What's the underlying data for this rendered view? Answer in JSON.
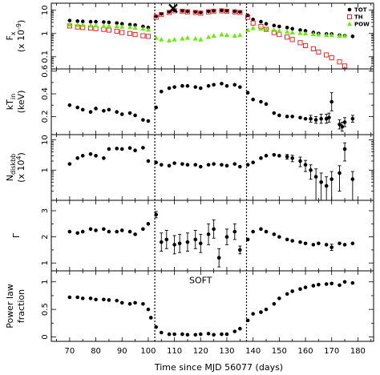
{
  "chart_data": {
    "type": "scatter",
    "title": "",
    "xlabel": "Time since MJD 56077 (days)",
    "xlim": [
      63,
      186
    ],
    "xticks": [
      "70",
      "80",
      "90",
      "100",
      "110",
      "120",
      "130",
      "140",
      "150",
      "160",
      "170",
      "180"
    ],
    "vlines": [
      102.5,
      137.5
    ],
    "colors": {
      "TOT": "#000000",
      "TH": "#ee1111",
      "POW": "#66ee00"
    },
    "panels": [
      {
        "id": "fx",
        "ylabel_line1": "F",
        "ylabel_sub": "x",
        "ylabel_line2": "(x 10",
        "ylabel_sup": "-9",
        "ylabel_close": ")",
        "log": true,
        "ylim": [
          0.03,
          20
        ],
        "ytick_labels": [
          {
            "v": 10,
            "text": "10"
          },
          {
            "v": 1,
            "text": "1"
          },
          {
            "v": 0.1,
            "text": "0.1"
          }
        ],
        "legend": [
          {
            "key": "TOT",
            "label": "TOT",
            "marker": "dot"
          },
          {
            "key": "TH",
            "label": "TH",
            "marker": "square"
          },
          {
            "key": "POW",
            "label": "POW",
            "marker": "triangle"
          }
        ],
        "marker_x": {
          "x": 109.5,
          "y": 12
        },
        "series": [
          {
            "name": "TOT",
            "marker": "dot",
            "x": [
              70,
              73,
              75,
              78,
              80,
              83,
              85,
              88,
              90,
              93,
              95,
              98,
              100,
              103,
              105,
              108,
              110,
              113,
              115,
              118,
              120,
              123,
              125,
              128,
              130,
              133,
              135,
              138,
              140,
              143,
              145,
              148,
              150,
              153,
              155,
              158,
              160,
              163,
              165,
              168,
              170,
              173,
              175,
              178
            ],
            "y": [
              3.6,
              3.4,
              3.3,
              3.2,
              3.2,
              3.1,
              3,
              2.8,
              2.6,
              2.4,
              2.3,
              2,
              1.8,
              5.5,
              7,
              8.5,
              10,
              9.5,
              9,
              8.5,
              8,
              9,
              9.5,
              9.8,
              9.5,
              9,
              8.5,
              6,
              4,
              3.2,
              2.6,
              2.2,
              2,
              1.8,
              1.6,
              1.4,
              1.3,
              1.1,
              1,
              0.95,
              0.95,
              0.85,
              0.8,
              0.75
            ]
          },
          {
            "name": "TH",
            "marker": "square",
            "x": [
              70,
              73,
              75,
              78,
              80,
              83,
              85,
              88,
              90,
              93,
              95,
              98,
              100,
              103,
              105,
              108,
              110,
              113,
              115,
              118,
              120,
              123,
              125,
              128,
              130,
              133,
              135,
              138,
              140,
              143,
              145,
              148,
              150,
              153,
              155,
              158,
              160,
              163,
              165,
              168,
              170,
              173,
              175
            ],
            "y": [
              2.1,
              1.9,
              1.8,
              1.7,
              1.6,
              1.5,
              1.4,
              1.25,
              1.1,
              1,
              0.9,
              0.8,
              0.75,
              5,
              6.5,
              8,
              9.5,
              9,
              8.5,
              8,
              7.5,
              8.5,
              9,
              9.4,
              9,
              8.5,
              8,
              5,
              2.8,
              2,
              1.5,
              1.1,
              0.9,
              0.7,
              0.55,
              0.4,
              0.3,
              0.22,
              0.16,
              0.12,
              0.09,
              0.06,
              0.04
            ]
          },
          {
            "name": "POW",
            "marker": "triangle",
            "x": [
              70,
              73,
              75,
              78,
              80,
              83,
              85,
              88,
              90,
              93,
              95,
              98,
              100,
              103,
              105,
              108,
              110,
              113,
              115,
              118,
              120,
              123,
              125,
              128,
              130,
              133,
              135,
              138,
              140,
              143,
              145,
              148,
              150,
              153,
              155,
              158,
              160,
              163,
              165,
              168,
              170,
              173,
              175
            ],
            "y": [
              2.4,
              2.3,
              2.3,
              2.2,
              2.2,
              2.1,
              2.1,
              2.05,
              1.95,
              1.85,
              1.75,
              1.6,
              1.45,
              0.65,
              0.55,
              0.5,
              0.55,
              0.6,
              0.65,
              0.6,
              0.55,
              0.7,
              0.8,
              0.9,
              0.85,
              0.8,
              0.85,
              1.4,
              1.7,
              1.6,
              1.5,
              1.4,
              1.3,
              1.2,
              1.1,
              1.05,
              1,
              0.95,
              0.9,
              0.85,
              0.85,
              0.8,
              0.78
            ]
          }
        ]
      },
      {
        "id": "kt",
        "ylabel_line1": "kT",
        "ylabel_sub": "in",
        "ylabel_line2": "(keV)",
        "log": false,
        "ylim": [
          0.04,
          0.62
        ],
        "ytick_labels": [
          {
            "v": 0.2,
            "text": "0.2"
          },
          {
            "v": 0.4,
            "text": "0.4"
          },
          {
            "v": 0.6,
            "text": "0.6"
          }
        ],
        "series": [
          {
            "name": "kTin",
            "marker": "dot",
            "x": [
              70,
              73,
              75,
              78,
              80,
              83,
              85,
              88,
              90,
              93,
              95,
              98,
              100,
              103,
              105,
              108,
              110,
              113,
              115,
              118,
              120,
              123,
              125,
              128,
              130,
              133,
              135,
              138,
              140,
              143,
              145,
              148,
              150,
              153,
              155,
              158,
              160,
              162,
              164,
              166,
              168,
              169,
              170,
              173,
              174,
              175,
              178
            ],
            "y": [
              0.3,
              0.28,
              0.26,
              0.24,
              0.27,
              0.25,
              0.26,
              0.24,
              0.22,
              0.23,
              0.21,
              0.17,
              0.16,
              0.28,
              0.42,
              0.45,
              0.46,
              0.47,
              0.47,
              0.46,
              0.45,
              0.47,
              0.48,
              0.49,
              0.47,
              0.48,
              0.46,
              0.41,
              0.35,
              0.33,
              0.31,
              0.23,
              0.21,
              0.2,
              0.2,
              0.19,
              0.18,
              0.18,
              0.17,
              0.18,
              0.18,
              0.19,
              0.33,
              0.13,
              0.11,
              0.15,
              0.18
            ],
            "err": [
              0,
              0,
              0,
              0,
              0,
              0,
              0,
              0,
              0,
              0,
              0,
              0,
              0,
              0,
              0,
              0,
              0,
              0,
              0,
              0,
              0,
              0,
              0,
              0,
              0,
              0,
              0,
              0,
              0,
              0,
              0,
              0,
              0,
              0,
              0,
              0,
              0,
              0.03,
              0.03,
              0.04,
              0.04,
              0.04,
              0.08,
              0.04,
              0.04,
              0.04,
              0.03
            ]
          }
        ]
      },
      {
        "id": "nd",
        "ylabel_line1": "N",
        "ylabel_sub": "diskbb",
        "ylabel_line2": "(x 10",
        "ylabel_sup": "4",
        "ylabel_close": ")",
        "log": true,
        "ylim": [
          0.1,
          15
        ],
        "ytick_labels": [
          {
            "v": 10,
            "text": "10"
          },
          {
            "v": 1,
            "text": "1"
          }
        ],
        "series": [
          {
            "name": "Ndiskbb",
            "marker": "dot",
            "x": [
              70,
              73,
              75,
              78,
              80,
              83,
              85,
              88,
              90,
              93,
              95,
              98,
              100,
              103,
              105,
              108,
              110,
              113,
              115,
              118,
              120,
              123,
              125,
              128,
              130,
              133,
              135,
              138,
              140,
              143,
              145,
              148,
              150,
              153,
              155,
              158,
              160,
              162,
              164,
              166,
              168,
              170,
              173,
              175,
              178
            ],
            "y": [
              1.6,
              2.5,
              3,
              3.4,
              3,
              2.5,
              5,
              5.2,
              5,
              5.4,
              4.5,
              5.5,
              2,
              1.8,
              1.5,
              1.4,
              1.7,
              1.6,
              1.5,
              1.5,
              1.3,
              1.5,
              1.6,
              1.5,
              1.4,
              1.6,
              1.3,
              1.5,
              1.8,
              2.5,
              3,
              3.2,
              3,
              2.8,
              2.5,
              2,
              1.5,
              1,
              0.6,
              0.4,
              0.3,
              0.5,
              0.8,
              5,
              0.5
            ],
            "err": [
              0,
              0,
              0,
              0,
              0,
              0,
              0,
              0,
              0,
              0,
              0,
              0,
              0,
              0,
              0,
              0,
              0,
              0,
              0,
              0,
              0,
              0,
              0,
              0,
              0,
              0,
              0,
              0,
              0,
              0,
              0,
              0,
              0,
              0.5,
              0.6,
              0.7,
              0.6,
              0.5,
              0.5,
              0.4,
              0.3,
              0.4,
              0.6,
              3,
              0.4
            ]
          }
        ]
      },
      {
        "id": "gamma",
        "ylabel_line1": "Γ",
        "log": false,
        "ylim": [
          0.7,
          3.4
        ],
        "ytick_labels": [
          {
            "v": 1,
            "text": "1"
          },
          {
            "v": 2,
            "text": "2"
          },
          {
            "v": 3,
            "text": "3"
          }
        ],
        "series": [
          {
            "name": "Gamma",
            "marker": "dot",
            "x": [
              70,
              73,
              75,
              78,
              80,
              83,
              85,
              88,
              90,
              93,
              95,
              98,
              100,
              103,
              105,
              107,
              110,
              112,
              115,
              118,
              120,
              123,
              125,
              127,
              130,
              133,
              135,
              138,
              140,
              143,
              145,
              148,
              150,
              153,
              155,
              158,
              160,
              163,
              165,
              168,
              170,
              173,
              175,
              178
            ],
            "y": [
              2.2,
              2.15,
              2.2,
              2.3,
              2.25,
              2.3,
              2.2,
              2.2,
              2.25,
              2.2,
              2.1,
              2.3,
              2.5,
              2.85,
              1.8,
              1.9,
              1.7,
              1.75,
              1.8,
              1.9,
              1.75,
              2.1,
              2.3,
              1.2,
              2.0,
              2.2,
              1.5,
              1.9,
              2.2,
              2.3,
              2.2,
              2.1,
              2.0,
              1.9,
              1.85,
              1.8,
              1.75,
              1.7,
              1.75,
              1.7,
              1.6,
              1.75,
              1.7,
              1.75
            ],
            "err": [
              0,
              0,
              0,
              0,
              0,
              0,
              0,
              0,
              0,
              0,
              0,
              0,
              0,
              0.12,
              0.35,
              0.35,
              0.35,
              0.35,
              0.35,
              0.35,
              0.35,
              0.4,
              0.35,
              0.35,
              0.3,
              0.3,
              0.15,
              0,
              0,
              0,
              0,
              0,
              0,
              0,
              0,
              0,
              0,
              0,
              0,
              0,
              0.12,
              0,
              0,
              0
            ]
          }
        ]
      },
      {
        "id": "plf",
        "ylabel_line1": "Power law",
        "ylabel_line2": "fraction",
        "log": false,
        "ylim": [
          -0.08,
          1.2
        ],
        "ytick_labels": [
          {
            "v": 0,
            "text": "0"
          },
          {
            "v": 0.5,
            "text": "0.5"
          },
          {
            "v": 1,
            "text": "1"
          }
        ],
        "annotation": {
          "text": "SOFT",
          "x": 120,
          "y": 1.03
        },
        "series": [
          {
            "name": "PLfraction",
            "marker": "dot",
            "x": [
              70,
              73,
              75,
              78,
              80,
              83,
              85,
              88,
              90,
              93,
              95,
              98,
              100,
              101,
              103,
              105,
              108,
              110,
              113,
              115,
              118,
              120,
              123,
              125,
              128,
              130,
              133,
              135,
              138,
              140,
              143,
              145,
              148,
              150,
              153,
              155,
              158,
              160,
              163,
              165,
              168,
              170,
              173,
              175,
              178
            ],
            "y": [
              0.72,
              0.72,
              0.7,
              0.7,
              0.68,
              0.68,
              0.67,
              0.66,
              0.62,
              0.6,
              0.62,
              0.6,
              0.5,
              0.35,
              0.18,
              0.08,
              0.05,
              0.05,
              0.05,
              0.04,
              0.04,
              0.05,
              0.06,
              0.04,
              0.05,
              0.05,
              0.1,
              0.15,
              0.3,
              0.42,
              0.45,
              0.5,
              0.6,
              0.7,
              0.78,
              0.83,
              0.87,
              0.9,
              0.93,
              0.95,
              0.96,
              0.97,
              0.94,
              1.0,
              0.98
            ]
          }
        ]
      }
    ]
  }
}
